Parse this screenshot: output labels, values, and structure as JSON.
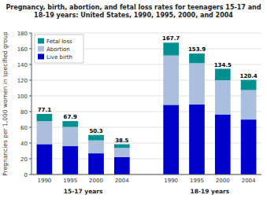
{
  "chart_data": {
    "type": "bar",
    "stacked": true,
    "title": "Pregnancy, birth, abortion, and fetal loss rates for teenagers 15-17 and\n18-19 years: United States, 1990, 1995, 2000, and 2004",
    "y_label": "Pregnancies per 1,000 women in specified group",
    "groups": [
      "15-17 years",
      "18-19 years"
    ],
    "categories": [
      "1990",
      "1995",
      "2000",
      "2004",
      "1990",
      "1995",
      "2000",
      "2004"
    ],
    "series": [
      {
        "name": "Live birth",
        "color": "#0000CC",
        "values": [
          38.6,
          36.0,
          26.9,
          22.1,
          88.6,
          89.1,
          76.4,
          69.9
        ]
      },
      {
        "name": "Abortion",
        "color": "#AABFDD",
        "values": [
          29.2,
          24.5,
          16.5,
          11.8,
          62.8,
          52.5,
          43.5,
          37.5
        ]
      },
      {
        "name": "Fetal loss",
        "color": "#009090",
        "values": [
          9.3,
          7.4,
          6.9,
          4.6,
          16.3,
          12.3,
          14.6,
          13.0
        ]
      }
    ],
    "totals": [
      77.1,
      67.9,
      50.3,
      38.5,
      167.7,
      153.9,
      134.5,
      120.4
    ],
    "ylim": [
      0,
      180
    ],
    "yticks": [
      0,
      20,
      40,
      60,
      80,
      100,
      120,
      140,
      160,
      180
    ],
    "legend": "upper left"
  }
}
